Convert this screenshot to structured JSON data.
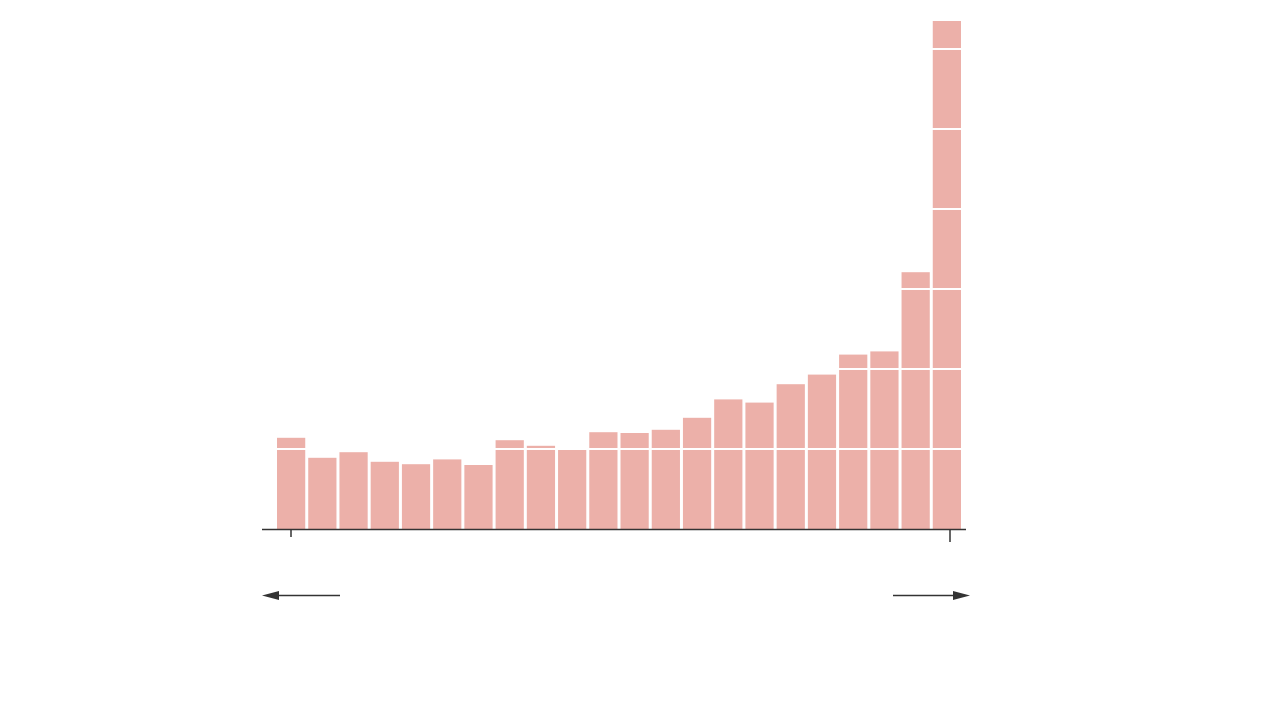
{
  "chart_data": {
    "type": "bar",
    "values": [
      114,
      89,
      96,
      84,
      81,
      87,
      80,
      111,
      104,
      101,
      121,
      120,
      124,
      139,
      162,
      158,
      181,
      193,
      218,
      222,
      321,
      635
    ],
    "ylim": [
      0,
      640
    ],
    "gridlines": [
      100,
      200,
      300,
      400,
      500,
      600
    ],
    "grid": true,
    "legend": "none",
    "colors": {
      "bar": "#ecb0a9",
      "gridline": "#ffffff",
      "axis": "#333333",
      "arrow": "#333333"
    }
  }
}
